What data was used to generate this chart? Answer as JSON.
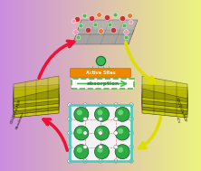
{
  "bg_left_color": "#cc88dd",
  "bg_right_color": "#eef580",
  "left_label_lines": [
    "GO/2D-Co-MOF",
    "Membrane"
  ],
  "right_label_lines": [
    "GO/2D-Co-MOF",
    "+Cs"
  ],
  "center_top_label": "Active Sites",
  "center_mid_label": "absorption",
  "arrow_red": "#ee1133",
  "arrow_yellow": "#dddd00",
  "membrane_yellow": "#bbbb00",
  "membrane_dark": "#333300",
  "mol_green": "#33aa44",
  "mol_green_light": "#88dd88",
  "mol_connector": "#aaaaaa",
  "grid_line_color": "#cc4444",
  "grid_border_color": "#44ccbb",
  "orange_bar": "#ee8800",
  "abs_border": "#44bb44",
  "pink_atom": "#ee99bb",
  "red_atom": "#cc3333",
  "green_atom": "#55bb55",
  "orange_atom": "#ee7733",
  "gray_layer": "#888888",
  "cs_atom": "#33bb55"
}
